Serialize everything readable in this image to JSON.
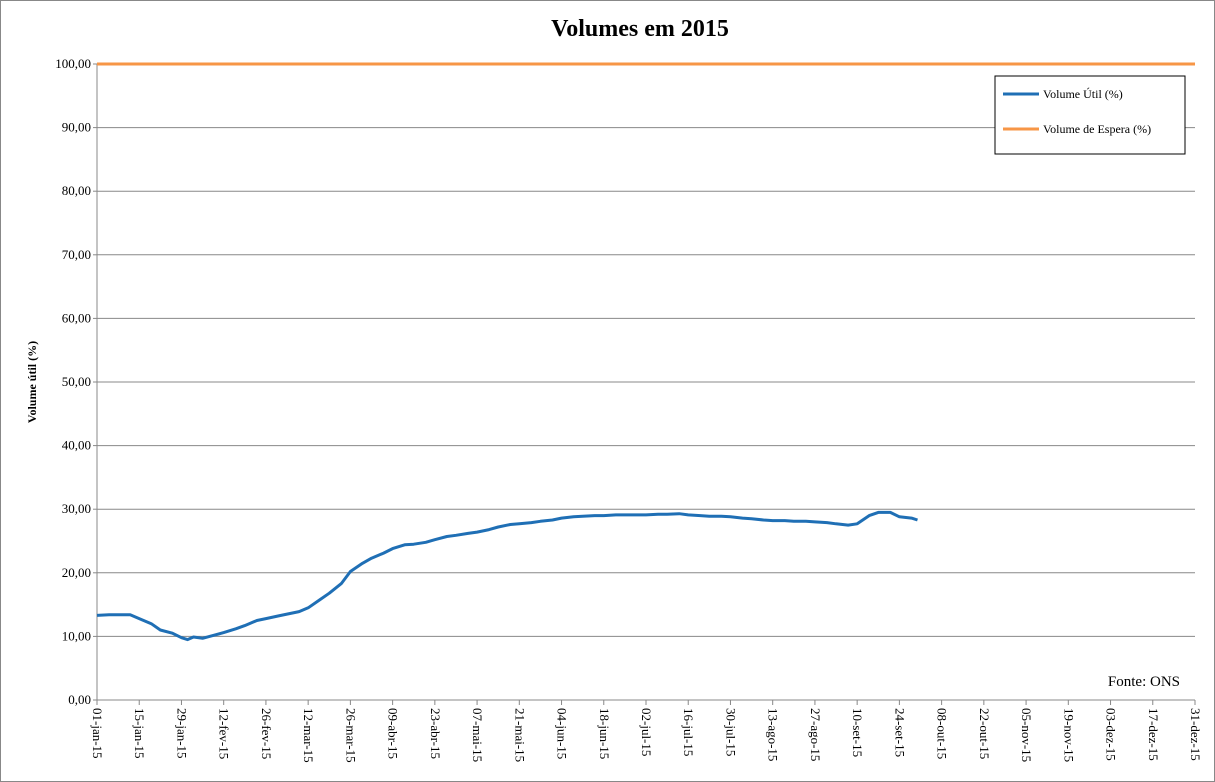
{
  "chart_data": {
    "type": "line",
    "title": "Volumes em 2015",
    "y_label": "Volume útil (%)",
    "annotation": "Fonte: ONS",
    "grid": true,
    "legend": "top-right",
    "xlim": [
      "2015-01-01",
      "2015-12-31"
    ],
    "xticks": [
      {
        "value": "2015-01-01",
        "label": "01-jan-15"
      },
      {
        "value": "2015-01-15",
        "label": "15-jan-15"
      },
      {
        "value": "2015-01-29",
        "label": "29-jan-15"
      },
      {
        "value": "2015-02-12",
        "label": "12-fev-15"
      },
      {
        "value": "2015-02-26",
        "label": "26-fev-15"
      },
      {
        "value": "2015-03-12",
        "label": "12-mar-15"
      },
      {
        "value": "2015-03-26",
        "label": "26-mar-15"
      },
      {
        "value": "2015-04-09",
        "label": "09-abr-15"
      },
      {
        "value": "2015-04-23",
        "label": "23-abr-15"
      },
      {
        "value": "2015-05-07",
        "label": "07-mai-15"
      },
      {
        "value": "2015-05-21",
        "label": "21-mai-15"
      },
      {
        "value": "2015-06-04",
        "label": "04-jun-15"
      },
      {
        "value": "2015-06-18",
        "label": "18-jun-15"
      },
      {
        "value": "2015-07-02",
        "label": "02-jul-15"
      },
      {
        "value": "2015-07-16",
        "label": "16-jul-15"
      },
      {
        "value": "2015-07-30",
        "label": "30-jul-15"
      },
      {
        "value": "2015-08-13",
        "label": "13-ago-15"
      },
      {
        "value": "2015-08-27",
        "label": "27-ago-15"
      },
      {
        "value": "2015-09-10",
        "label": "10-set-15"
      },
      {
        "value": "2015-09-24",
        "label": "24-set-15"
      },
      {
        "value": "2015-10-08",
        "label": "08-out-15"
      },
      {
        "value": "2015-10-22",
        "label": "22-out-15"
      },
      {
        "value": "2015-11-05",
        "label": "05-nov-15"
      },
      {
        "value": "2015-11-19",
        "label": "19-nov-15"
      },
      {
        "value": "2015-12-03",
        "label": "03-dez-15"
      },
      {
        "value": "2015-12-17",
        "label": "17-dez-15"
      },
      {
        "value": "2015-12-31",
        "label": "31-dez-15"
      }
    ],
    "ylim": [
      0,
      100
    ],
    "yticks": [
      {
        "value": 0,
        "label": "0,00"
      },
      {
        "value": 10,
        "label": "10,00"
      },
      {
        "value": 20,
        "label": "20,00"
      },
      {
        "value": 30,
        "label": "30,00"
      },
      {
        "value": 40,
        "label": "40,00"
      },
      {
        "value": 50,
        "label": "50,00"
      },
      {
        "value": 60,
        "label": "60,00"
      },
      {
        "value": 70,
        "label": "70,00"
      },
      {
        "value": 80,
        "label": "80,00"
      },
      {
        "value": 90,
        "label": "90,00"
      },
      {
        "value": 100,
        "label": "100,00"
      }
    ],
    "series": [
      {
        "name": "Volume Útil (%)",
        "color": "#1f6fb5",
        "x": [
          "2015-01-01",
          "2015-01-05",
          "2015-01-12",
          "2015-01-15",
          "2015-01-19",
          "2015-01-22",
          "2015-01-26",
          "2015-01-29",
          "2015-01-31",
          "2015-02-02",
          "2015-02-05",
          "2015-02-09",
          "2015-02-12",
          "2015-02-16",
          "2015-02-19",
          "2015-02-23",
          "2015-02-26",
          "2015-03-02",
          "2015-03-05",
          "2015-03-09",
          "2015-03-12",
          "2015-03-16",
          "2015-03-19",
          "2015-03-23",
          "2015-03-26",
          "2015-03-30",
          "2015-04-02",
          "2015-04-06",
          "2015-04-09",
          "2015-04-13",
          "2015-04-16",
          "2015-04-20",
          "2015-04-23",
          "2015-04-27",
          "2015-04-30",
          "2015-05-04",
          "2015-05-07",
          "2015-05-11",
          "2015-05-14",
          "2015-05-18",
          "2015-05-21",
          "2015-05-25",
          "2015-05-28",
          "2015-06-01",
          "2015-06-04",
          "2015-06-08",
          "2015-06-11",
          "2015-06-15",
          "2015-06-18",
          "2015-06-22",
          "2015-06-25",
          "2015-06-29",
          "2015-07-02",
          "2015-07-06",
          "2015-07-09",
          "2015-07-13",
          "2015-07-16",
          "2015-07-20",
          "2015-07-23",
          "2015-07-27",
          "2015-07-30",
          "2015-08-03",
          "2015-08-06",
          "2015-08-10",
          "2015-08-13",
          "2015-08-17",
          "2015-08-20",
          "2015-08-24",
          "2015-08-27",
          "2015-08-31",
          "2015-09-03",
          "2015-09-07",
          "2015-09-10",
          "2015-09-14",
          "2015-09-17",
          "2015-09-21",
          "2015-09-24",
          "2015-09-28",
          "2015-09-30"
        ],
        "values": [
          13.3,
          13.4,
          13.4,
          12.8,
          12.0,
          11.0,
          10.5,
          9.8,
          9.5,
          9.9,
          9.7,
          10.2,
          10.6,
          11.2,
          11.7,
          12.5,
          12.8,
          13.2,
          13.5,
          13.9,
          14.5,
          15.8,
          16.8,
          18.3,
          20.2,
          21.5,
          22.3,
          23.1,
          23.8,
          24.4,
          24.5,
          24.8,
          25.2,
          25.7,
          25.9,
          26.2,
          26.4,
          26.8,
          27.2,
          27.6,
          27.7,
          27.9,
          28.1,
          28.3,
          28.6,
          28.8,
          28.9,
          29.0,
          29.0,
          29.1,
          29.1,
          29.1,
          29.1,
          29.2,
          29.2,
          29.3,
          29.1,
          29.0,
          28.9,
          28.9,
          28.8,
          28.6,
          28.5,
          28.3,
          28.2,
          28.2,
          28.1,
          28.1,
          28.0,
          27.9,
          27.7,
          27.5,
          27.7,
          29.0,
          29.5,
          29.5,
          28.8,
          28.6,
          28.3
        ]
      },
      {
        "name": "Volume de Espera (%)",
        "color": "#f79646",
        "x": [
          "2015-01-01",
          "2015-12-31"
        ],
        "values": [
          100,
          100
        ]
      }
    ]
  }
}
